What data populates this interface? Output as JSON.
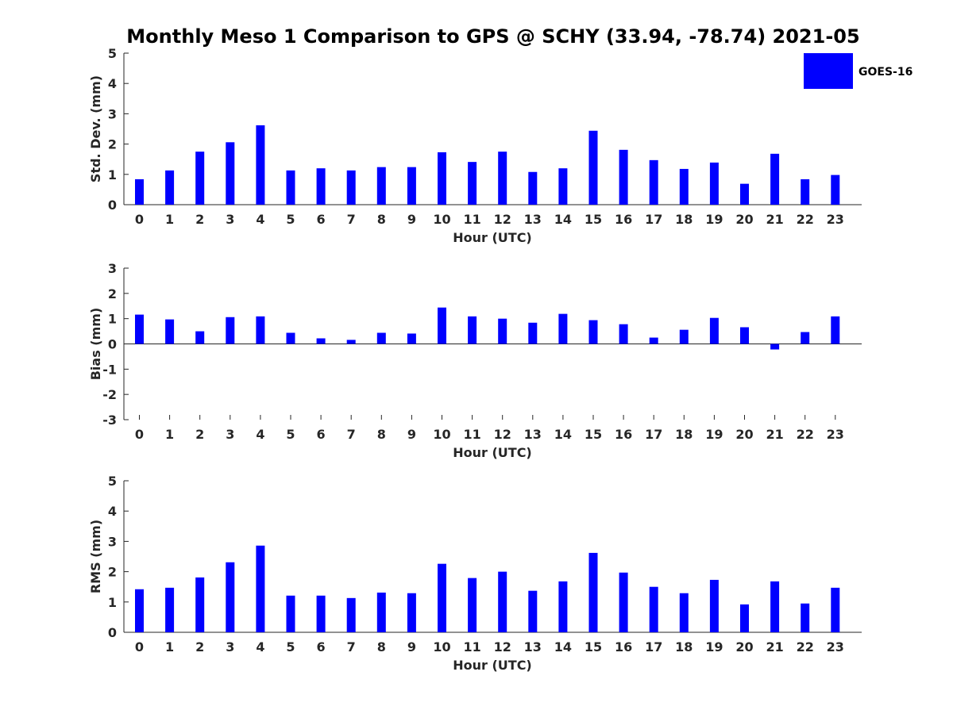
{
  "chart_data": {
    "title": "Monthly Meso 1 Comparison to GPS @ SCHY (33.94, -78.74) 2021-05",
    "legend": {
      "label": "GOES-16",
      "color": "#0000ff",
      "placement": "top-right"
    },
    "panels": [
      {
        "type": "bar",
        "ylabel": "Std. Dev. (mm)",
        "xlabel": "Hour (UTC)",
        "ylim": [
          0,
          5
        ],
        "yticks": [
          0,
          1,
          2,
          3,
          4,
          5
        ],
        "categories": [
          "0",
          "1",
          "2",
          "3",
          "4",
          "5",
          "6",
          "7",
          "8",
          "9",
          "10",
          "11",
          "12",
          "13",
          "14",
          "15",
          "16",
          "17",
          "18",
          "19",
          "20",
          "21",
          "22",
          "23"
        ],
        "series": [
          {
            "name": "GOES-16",
            "values": [
              0.84,
              1.13,
              1.75,
              2.06,
              2.62,
              1.13,
              1.2,
              1.13,
              1.24,
              1.24,
              1.73,
              1.41,
              1.75,
              1.08,
              1.2,
              2.44,
              1.81,
              1.47,
              1.18,
              1.39,
              0.69,
              1.68,
              0.84,
              0.98
            ]
          }
        ]
      },
      {
        "type": "bar",
        "ylabel": "Bias (mm)",
        "xlabel": "Hour (UTC)",
        "ylim": [
          -3,
          3
        ],
        "yticks": [
          -3,
          -2,
          -1,
          0,
          1,
          2,
          3
        ],
        "categories": [
          "0",
          "1",
          "2",
          "3",
          "4",
          "5",
          "6",
          "7",
          "8",
          "9",
          "10",
          "11",
          "12",
          "13",
          "14",
          "15",
          "16",
          "17",
          "18",
          "19",
          "20",
          "21",
          "22",
          "23"
        ],
        "series": [
          {
            "name": "GOES-16",
            "values": [
              1.16,
              0.97,
              0.5,
              1.06,
              1.09,
              0.44,
              0.22,
              0.16,
              0.44,
              0.41,
              1.44,
              1.09,
              1.0,
              0.84,
              1.19,
              0.94,
              0.78,
              0.25,
              0.56,
              1.03,
              0.66,
              -0.22,
              0.47,
              1.09
            ]
          }
        ]
      },
      {
        "type": "bar",
        "ylabel": "RMS (mm)",
        "xlabel": "Hour (UTC)",
        "ylim": [
          0,
          5
        ],
        "yticks": [
          0,
          1,
          2,
          3,
          4,
          5
        ],
        "categories": [
          "0",
          "1",
          "2",
          "3",
          "4",
          "5",
          "6",
          "7",
          "8",
          "9",
          "10",
          "11",
          "12",
          "13",
          "14",
          "15",
          "16",
          "17",
          "18",
          "19",
          "20",
          "21",
          "22",
          "23"
        ],
        "series": [
          {
            "name": "GOES-16",
            "values": [
              1.42,
              1.47,
              1.81,
              2.31,
              2.86,
              1.21,
              1.21,
              1.13,
              1.31,
              1.29,
              2.26,
              1.79,
              2.0,
              1.37,
              1.68,
              2.62,
              1.97,
              1.5,
              1.29,
              1.73,
              0.92,
              1.68,
              0.95,
              1.47
            ]
          }
        ]
      }
    ]
  }
}
